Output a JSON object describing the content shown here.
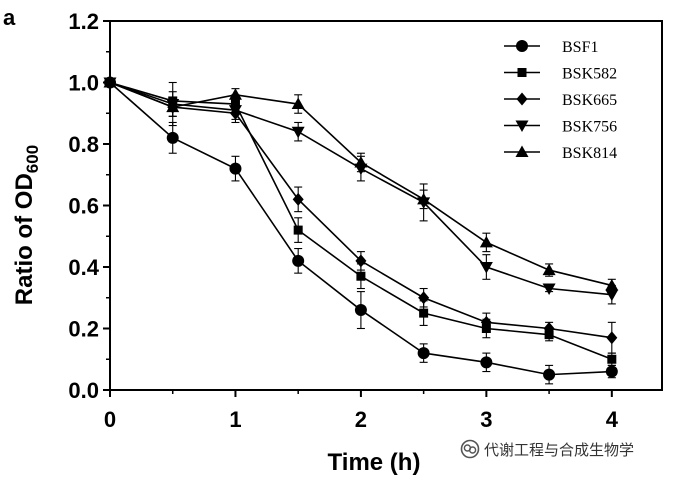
{
  "panel_label": "a",
  "watermark": {
    "text": "代谢工程与合成生物学",
    "icon": "wechat-official-account-icon"
  },
  "chart_data": {
    "type": "line",
    "title": "",
    "xlabel": "Time (h)",
    "ylabel": {
      "main": "Ratio of OD",
      "subscript": "600"
    },
    "xlim": [
      0,
      4.4
    ],
    "ylim": [
      0,
      1.2
    ],
    "xticks": [
      0,
      1,
      2,
      3,
      4
    ],
    "xtick_labels": [
      "0",
      "1",
      "2",
      "3",
      "4"
    ],
    "yticks": [
      0.0,
      0.2,
      0.4,
      0.6,
      0.8,
      1.0,
      1.2
    ],
    "ytick_labels": [
      "0.0",
      "0.2",
      "0.4",
      "0.6",
      "0.8",
      "1.0",
      "1.2"
    ],
    "grid": false,
    "legend_position": "top-right",
    "x": [
      0,
      0.5,
      1,
      1.5,
      2,
      2.5,
      3,
      3.5,
      4
    ],
    "series": [
      {
        "name": "BSF1",
        "marker": "circle",
        "values": [
          1.0,
          0.82,
          0.72,
          0.42,
          0.26,
          0.12,
          0.09,
          0.05,
          0.06
        ],
        "errors": [
          0.0,
          0.05,
          0.04,
          0.04,
          0.06,
          0.03,
          0.03,
          0.03,
          0.02
        ]
      },
      {
        "name": "BSK582",
        "marker": "square",
        "values": [
          1.0,
          0.94,
          0.93,
          0.52,
          0.37,
          0.25,
          0.2,
          0.18,
          0.1
        ],
        "errors": [
          0.0,
          0.03,
          0.03,
          0.04,
          0.04,
          0.04,
          0.03,
          0.02,
          0.02
        ]
      },
      {
        "name": "BSK665",
        "marker": "diamond",
        "values": [
          1.0,
          0.92,
          0.9,
          0.62,
          0.42,
          0.3,
          0.22,
          0.2,
          0.17
        ],
        "errors": [
          0.0,
          0.03,
          0.03,
          0.04,
          0.03,
          0.03,
          0.03,
          0.02,
          0.05
        ]
      },
      {
        "name": "BSK756",
        "marker": "triangle-down",
        "values": [
          1.0,
          0.93,
          0.91,
          0.84,
          0.72,
          0.61,
          0.4,
          0.33,
          0.31
        ],
        "errors": [
          0.0,
          0.07,
          0.03,
          0.03,
          0.04,
          0.06,
          0.04,
          0.01,
          0.03
        ]
      },
      {
        "name": "BSK814",
        "marker": "triangle-up",
        "values": [
          1.0,
          0.92,
          0.96,
          0.93,
          0.74,
          0.62,
          0.48,
          0.39,
          0.34
        ],
        "errors": [
          0.0,
          0.03,
          0.02,
          0.03,
          0.03,
          0.03,
          0.03,
          0.02,
          0.02
        ]
      }
    ]
  }
}
